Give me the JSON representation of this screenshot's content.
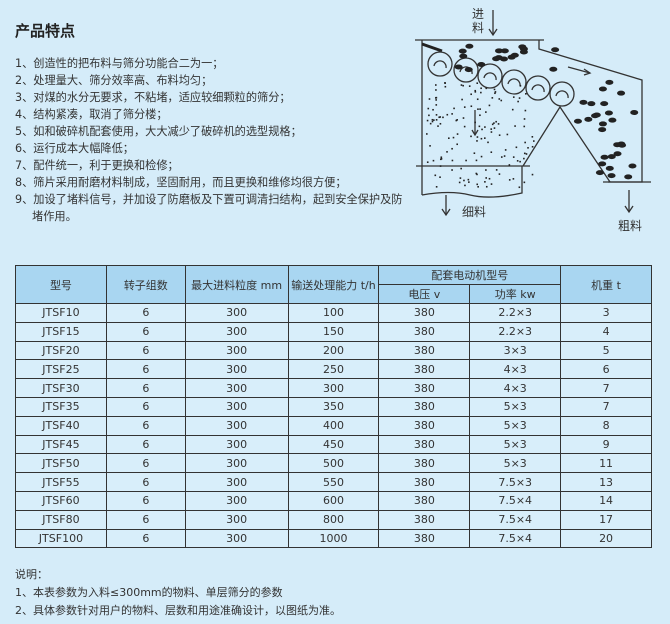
{
  "title": "产品特点",
  "features": [
    "1、创造性的把布料与筛分功能合二为一；",
    "2、处理量大、筛分效率高、布料均匀；",
    "3、对煤的水分无要求，不粘堵，适应较细颗粒的筛分；",
    "4、结构紧凑，取消了筛分楼；",
    "5、如和破碎机配套使用，大大减少了破碎机的选型规格；",
    "6、运行成本大幅降低；",
    "7、配件统一，利于更换和检修；",
    "8、筛片采用耐磨材料制成，坚固耐用，而且更换和维修均很方便；",
    "9、加设了堵料信号，并加设了防磨板及下置可调清扫结构，起到安全保护及防堵作用。"
  ],
  "diagram": {
    "feed": "进料",
    "fine": "细料",
    "coarse": "粗料"
  },
  "table": {
    "headers": {
      "model": "型号",
      "rotors": "转子组数",
      "max_feed": "最大进料粒度 mm",
      "capacity": "输送处理能力 t/h",
      "motor": "配套电动机型号",
      "voltage": "电压 v",
      "power": "功率 kw",
      "weight": "机重 t"
    },
    "rows": [
      [
        "JTSF10",
        "6",
        "300",
        "100",
        "380",
        "2.2×3",
        "3"
      ],
      [
        "JTSF15",
        "6",
        "300",
        "150",
        "380",
        "2.2×3",
        "4"
      ],
      [
        "JTSF20",
        "6",
        "300",
        "200",
        "380",
        "3×3",
        "5"
      ],
      [
        "JTSF25",
        "6",
        "300",
        "250",
        "380",
        "4×3",
        "6"
      ],
      [
        "JTSF30",
        "6",
        "300",
        "300",
        "380",
        "4×3",
        "7"
      ],
      [
        "JTSF35",
        "6",
        "300",
        "350",
        "380",
        "5×3",
        "7"
      ],
      [
        "JTSF40",
        "6",
        "300",
        "400",
        "380",
        "5×3",
        "8"
      ],
      [
        "JTSF45",
        "6",
        "300",
        "450",
        "380",
        "5×3",
        "9"
      ],
      [
        "JTSF50",
        "6",
        "300",
        "500",
        "380",
        "5×3",
        "11"
      ],
      [
        "JTSF55",
        "6",
        "300",
        "550",
        "380",
        "7.5×3",
        "13"
      ],
      [
        "JTSF60",
        "6",
        "300",
        "600",
        "380",
        "7.5×4",
        "14"
      ],
      [
        "JTSF80",
        "6",
        "300",
        "800",
        "380",
        "7.5×4",
        "17"
      ],
      [
        "JTSF100",
        "6",
        "300",
        "1000",
        "380",
        "7.5×4",
        "20"
      ]
    ]
  },
  "notes": {
    "heading": "说明：",
    "items": [
      "1、本表参数为入料≤300mm的物料、单层筛分的参数",
      "2、具体参数针对用户的物料、层数和用途准确设计，以图纸为准。"
    ]
  }
}
